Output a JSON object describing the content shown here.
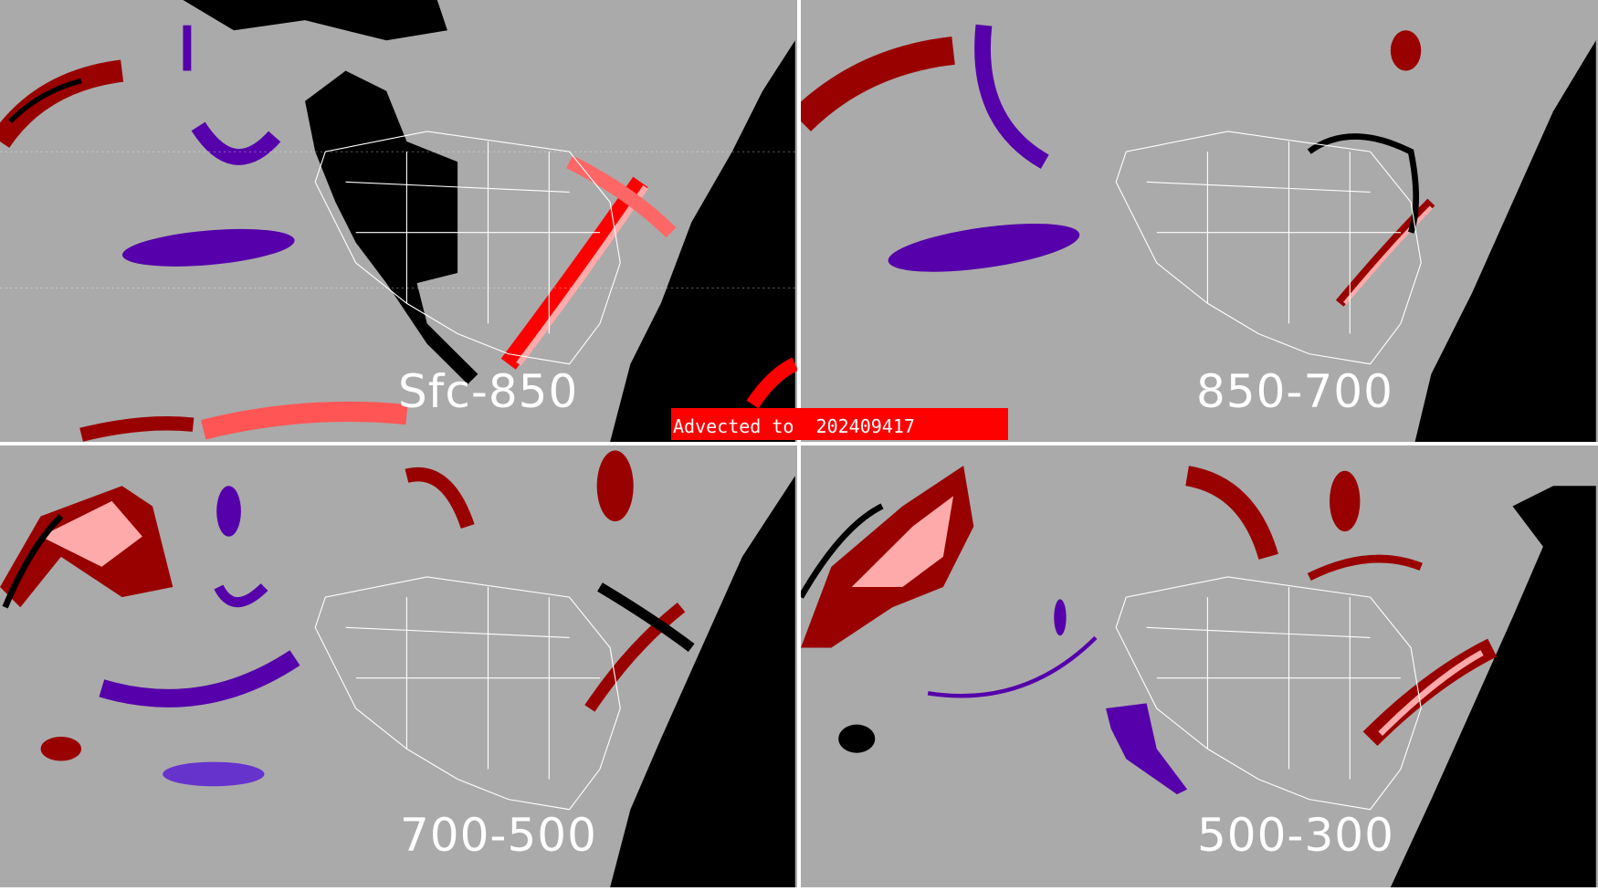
{
  "panels": [
    {
      "label": "Sfc-850"
    },
    {
      "label": "850-700"
    },
    {
      "label": "700-500"
    },
    {
      "label": "500-300"
    }
  ],
  "banner": {
    "text": "Advected to  202409417"
  },
  "colors": {
    "background": "#aaaaaa",
    "no_data": "#000000",
    "purple": "#5500aa",
    "dark_red": "#990000",
    "red": "#ff0000",
    "pink": "#ffaaaa",
    "boundaries": "#ffffff",
    "banner": "#ff0000"
  }
}
